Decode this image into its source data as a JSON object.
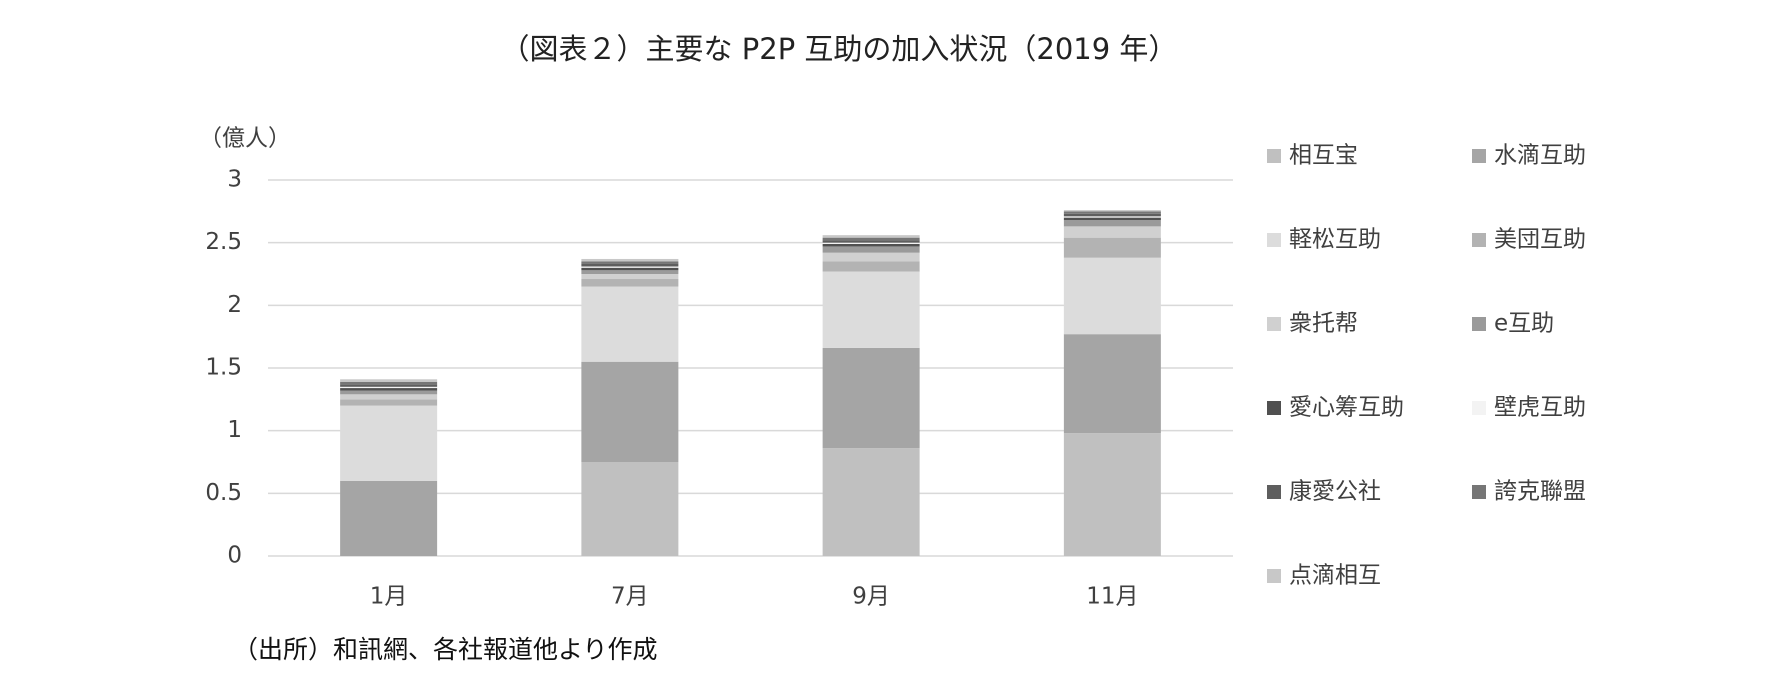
{
  "chart_data": {
    "type": "bar",
    "stacked": true,
    "title": "（図表２）主要な P2P 互助の加入状況（2019 年）",
    "y_label": "（億人）",
    "note": "（出所）和訊網、各社報道他より作成",
    "categories": [
      "1月",
      "7月",
      "9月",
      "11月"
    ],
    "ylim": [
      0,
      3
    ],
    "yticks": [
      0,
      0.5,
      1,
      1.5,
      2,
      2.5,
      3
    ],
    "grid": true,
    "series": [
      {
        "name": "相互宝",
        "color": "#c0c0c0",
        "values": [
          0,
          0.75,
          0.86,
          0.98
        ]
      },
      {
        "name": "水滴互助",
        "color": "#a5a5a5",
        "values": [
          0.6,
          0.8,
          0.8,
          0.79
        ]
      },
      {
        "name": "軽松互助",
        "color": "#dcdcdc",
        "values": [
          0.6,
          0.6,
          0.61,
          0.61
        ]
      },
      {
        "name": "美団互助",
        "color": "#b3b3b3",
        "values": [
          0.05,
          0.06,
          0.08,
          0.16
        ]
      },
      {
        "name": "衆托帮",
        "color": "#d0d0d0",
        "values": [
          0.04,
          0.04,
          0.07,
          0.09
        ]
      },
      {
        "name": "e互助",
        "color": "#9a9a9a",
        "values": [
          0.03,
          0.03,
          0.05,
          0.05
        ]
      },
      {
        "name": "愛心筹互助",
        "color": "#505050",
        "values": [
          0.02,
          0.02,
          0.02,
          0.02
        ]
      },
      {
        "name": "壁虎互助",
        "color": "#f3f3f3",
        "values": [
          0.01,
          0.01,
          0.01,
          0.01
        ]
      },
      {
        "name": "康愛公社",
        "color": "#5e5e5e",
        "values": [
          0.02,
          0.02,
          0.02,
          0.02
        ]
      },
      {
        "name": "誇克聯盟",
        "color": "#767676",
        "values": [
          0.02,
          0.02,
          0.02,
          0.02
        ]
      },
      {
        "name": "点滴相互",
        "color": "#c8c8c8",
        "values": [
          0.02,
          0.02,
          0.02,
          0.01
        ]
      }
    ]
  }
}
